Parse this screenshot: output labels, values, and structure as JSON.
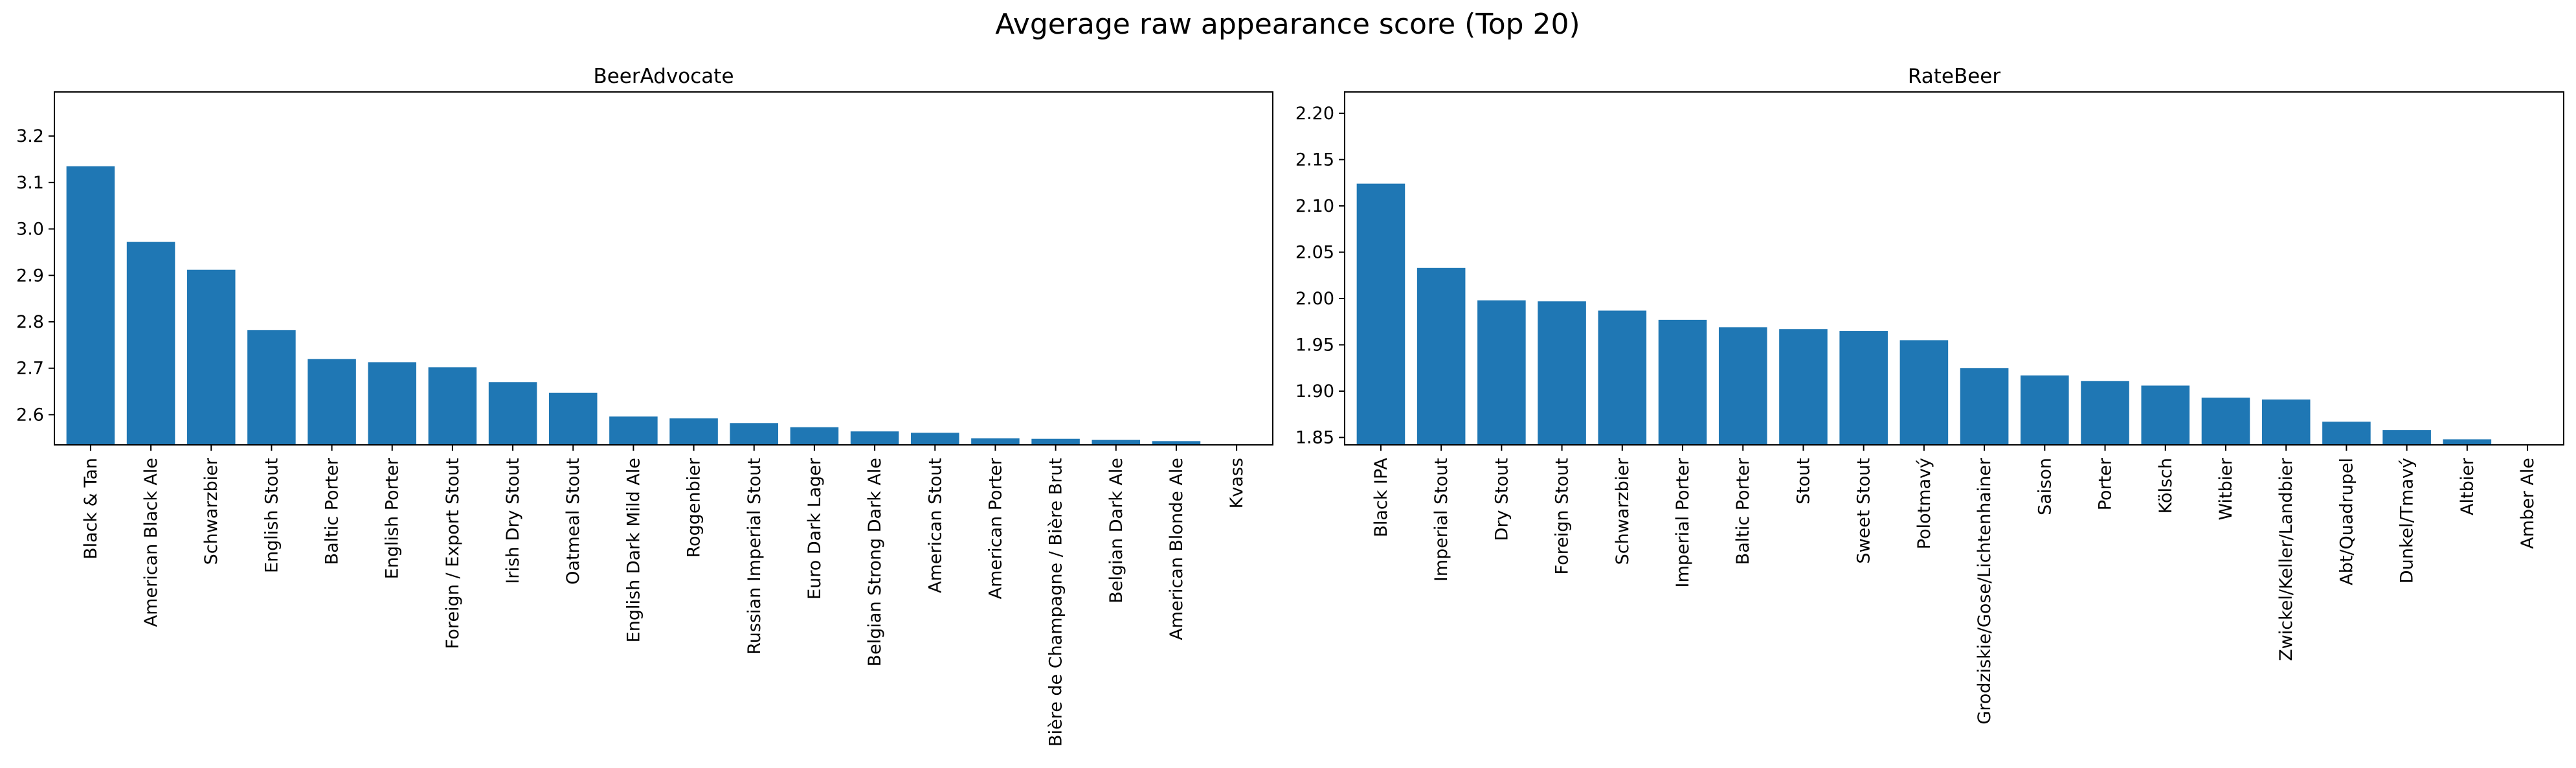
{
  "figure": {
    "title": "Avgerage raw appearance score (Top 20)"
  },
  "colors": {
    "bar": "#1f77b4",
    "axes": "#000000",
    "background": "#ffffff"
  },
  "chart_data": [
    {
      "type": "bar",
      "title": "BeerAdvocate",
      "xlabel": "",
      "ylabel": "",
      "ylim": [
        2.535,
        3.295
      ],
      "yticks": [
        2.6,
        2.7,
        2.8,
        2.9,
        3.0,
        3.1,
        3.2
      ],
      "ytick_labels": [
        "2.6",
        "2.7",
        "2.8",
        "2.9",
        "3.0",
        "3.1",
        "3.2"
      ],
      "grid": false,
      "categories": [
        "Black & Tan",
        "American Black Ale",
        "Schwarzbier",
        "English Stout",
        "Baltic Porter",
        "English Porter",
        "Foreign / Export Stout",
        "Irish Dry Stout",
        "Oatmeal Stout",
        "English Dark Mild Ale",
        "Roggenbier",
        "Russian Imperial Stout",
        "Euro Dark Lager",
        "Belgian Strong Dark Ale",
        "American Stout",
        "American Porter",
        "Bière de Champagne / Bière Brut",
        "Belgian Dark Ale",
        "American Blonde Ale",
        "Kvass"
      ],
      "values": [
        3.135,
        2.972,
        2.912,
        2.782,
        2.72,
        2.713,
        2.702,
        2.67,
        2.647,
        2.596,
        2.592,
        2.582,
        2.573,
        2.564,
        2.561,
        2.549,
        2.548,
        2.546,
        2.543,
        2.535
      ]
    },
    {
      "type": "bar",
      "title": "RateBeer",
      "xlabel": "",
      "ylabel": "",
      "ylim": [
        1.842,
        2.223
      ],
      "yticks": [
        1.85,
        1.9,
        1.95,
        2.0,
        2.05,
        2.1,
        2.15,
        2.2
      ],
      "ytick_labels": [
        "1.85",
        "1.90",
        "1.95",
        "2.00",
        "2.05",
        "2.10",
        "2.15",
        "2.20"
      ],
      "grid": false,
      "categories": [
        "Black IPA",
        "Imperial Stout",
        "Dry Stout",
        "Foreign Stout",
        "Schwarzbier",
        "Imperial Porter",
        "Baltic Porter",
        "Stout",
        "Sweet Stout",
        "Polotmavý",
        "Grodziskie/Gose/Lichtenhainer",
        "Saison",
        "Porter",
        "Kölsch",
        "Witbier",
        "Zwickel/Keller/Landbier",
        "Abt/Quadrupel",
        "Dunkel/Tmavý",
        "Altbier",
        "Amber Ale"
      ],
      "values": [
        2.124,
        2.033,
        1.998,
        1.997,
        1.987,
        1.977,
        1.969,
        1.967,
        1.965,
        1.955,
        1.925,
        1.917,
        1.911,
        1.906,
        1.893,
        1.891,
        1.867,
        1.858,
        1.848,
        1.842
      ]
    }
  ]
}
